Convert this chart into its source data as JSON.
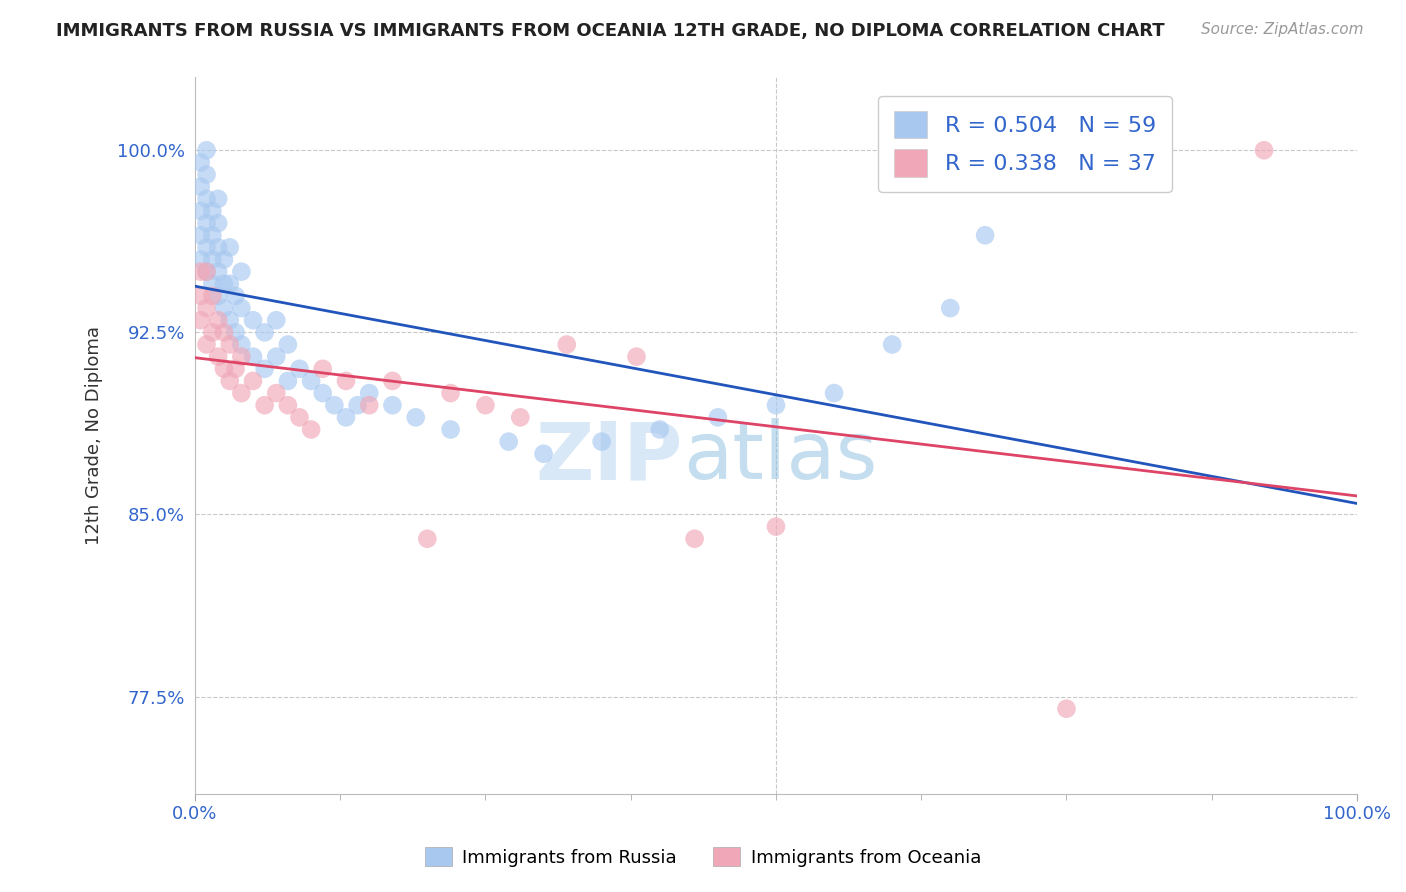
{
  "title": "IMMIGRANTS FROM RUSSIA VS IMMIGRANTS FROM OCEANIA 12TH GRADE, NO DIPLOMA CORRELATION CHART",
  "source_text": "Source: ZipAtlas.com",
  "ylabel": "12th Grade, No Diploma",
  "xlim": [
    0.0,
    1.0
  ],
  "ylim": [
    0.735,
    1.03
  ],
  "yticks": [
    0.775,
    0.85,
    0.925,
    1.0
  ],
  "ytick_labels": [
    "77.5%",
    "85.0%",
    "92.5%",
    "100.0%"
  ],
  "xtick_labels": [
    "0.0%",
    "100.0%"
  ],
  "xticks": [
    0.0,
    1.0
  ],
  "russia_R": 0.504,
  "russia_N": 59,
  "oceania_R": 0.338,
  "oceania_N": 37,
  "russia_color": "#A8C8F0",
  "oceania_color": "#F0A8B8",
  "russia_line_color": "#2255BB",
  "oceania_line_color": "#DD4466",
  "watermark_color": "#C8DFF5",
  "background_color": "#FFFFFF",
  "russia_x": [
    0.005,
    0.005,
    0.005,
    0.005,
    0.005,
    0.01,
    0.01,
    0.01,
    0.01,
    0.01,
    0.01,
    0.015,
    0.015,
    0.015,
    0.015,
    0.02,
    0.02,
    0.02,
    0.02,
    0.02,
    0.025,
    0.025,
    0.025,
    0.03,
    0.03,
    0.03,
    0.035,
    0.035,
    0.04,
    0.04,
    0.04,
    0.05,
    0.05,
    0.06,
    0.06,
    0.07,
    0.07,
    0.08,
    0.08,
    0.09,
    0.1,
    0.11,
    0.12,
    0.13,
    0.14,
    0.15,
    0.17,
    0.19,
    0.22,
    0.27,
    0.3,
    0.35,
    0.4,
    0.45,
    0.5,
    0.55,
    0.6,
    0.65,
    0.68
  ],
  "russia_y": [
    0.955,
    0.965,
    0.975,
    0.985,
    0.995,
    0.95,
    0.96,
    0.97,
    0.98,
    0.99,
    1.0,
    0.945,
    0.955,
    0.965,
    0.975,
    0.94,
    0.95,
    0.96,
    0.97,
    0.98,
    0.935,
    0.945,
    0.955,
    0.93,
    0.945,
    0.96,
    0.925,
    0.94,
    0.92,
    0.935,
    0.95,
    0.915,
    0.93,
    0.91,
    0.925,
    0.915,
    0.93,
    0.905,
    0.92,
    0.91,
    0.905,
    0.9,
    0.895,
    0.89,
    0.895,
    0.9,
    0.895,
    0.89,
    0.885,
    0.88,
    0.875,
    0.88,
    0.885,
    0.89,
    0.895,
    0.9,
    0.92,
    0.935,
    0.965
  ],
  "oceania_x": [
    0.005,
    0.005,
    0.005,
    0.01,
    0.01,
    0.01,
    0.015,
    0.015,
    0.02,
    0.02,
    0.025,
    0.025,
    0.03,
    0.03,
    0.035,
    0.04,
    0.04,
    0.05,
    0.06,
    0.07,
    0.08,
    0.09,
    0.1,
    0.11,
    0.13,
    0.15,
    0.17,
    0.2,
    0.22,
    0.25,
    0.28,
    0.32,
    0.38,
    0.43,
    0.5,
    0.75,
    0.92
  ],
  "oceania_y": [
    0.93,
    0.94,
    0.95,
    0.92,
    0.935,
    0.95,
    0.925,
    0.94,
    0.915,
    0.93,
    0.91,
    0.925,
    0.905,
    0.92,
    0.91,
    0.9,
    0.915,
    0.905,
    0.895,
    0.9,
    0.895,
    0.89,
    0.885,
    0.91,
    0.905,
    0.895,
    0.905,
    0.84,
    0.9,
    0.895,
    0.89,
    0.92,
    0.915,
    0.84,
    0.845,
    0.77,
    1.0
  ]
}
